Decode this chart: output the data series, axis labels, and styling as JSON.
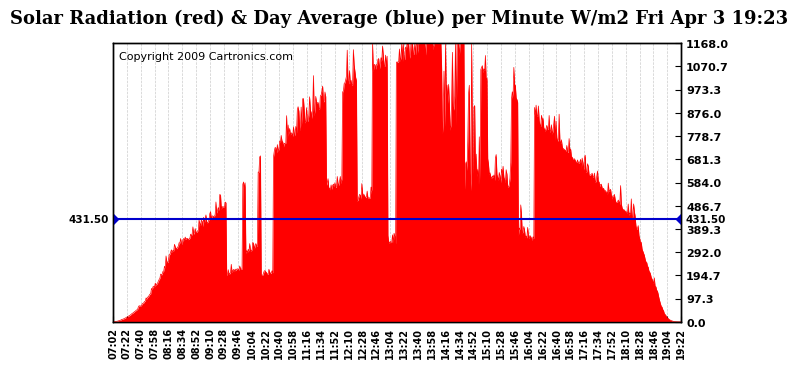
{
  "title": "Solar Radiation (red) & Day Average (blue) per Minute W/m2 Fri Apr 3 19:23",
  "copyright": "Copyright 2009 Cartronics.com",
  "avg_line_y": 431.5,
  "avg_label": "431.50",
  "y_min": 0.0,
  "y_max": 1168.0,
  "y_ticks": [
    0.0,
    97.3,
    194.7,
    292.0,
    389.3,
    486.7,
    584.0,
    681.3,
    778.7,
    876.0,
    973.3,
    1070.7,
    1168.0
  ],
  "y_tick_labels": [
    "0.0",
    "97.3",
    "194.7",
    "292.0",
    "389.3",
    "486.7",
    "584.0",
    "681.3",
    "778.7",
    "876.0",
    "973.3",
    "1070.7",
    "1168.0"
  ],
  "x_start_min": 422,
  "x_end_min": 1162,
  "x_tick_labels": [
    "07:02",
    "07:22",
    "07:40",
    "07:58",
    "08:16",
    "08:34",
    "08:52",
    "09:10",
    "09:28",
    "09:46",
    "10:04",
    "10:22",
    "10:40",
    "10:58",
    "11:16",
    "11:34",
    "11:52",
    "12:10",
    "12:28",
    "12:46",
    "13:04",
    "13:22",
    "13:40",
    "13:58",
    "14:16",
    "14:34",
    "14:52",
    "15:10",
    "15:28",
    "15:46",
    "16:04",
    "16:22",
    "16:40",
    "16:58",
    "17:16",
    "17:34",
    "17:52",
    "18:10",
    "18:28",
    "18:46",
    "19:04",
    "19:22"
  ],
  "background_color": "#ffffff",
  "fill_color": "#ff0000",
  "line_color": "#0000cc",
  "grid_color": "#cccccc",
  "title_fontsize": 13,
  "copyright_fontsize": 8
}
